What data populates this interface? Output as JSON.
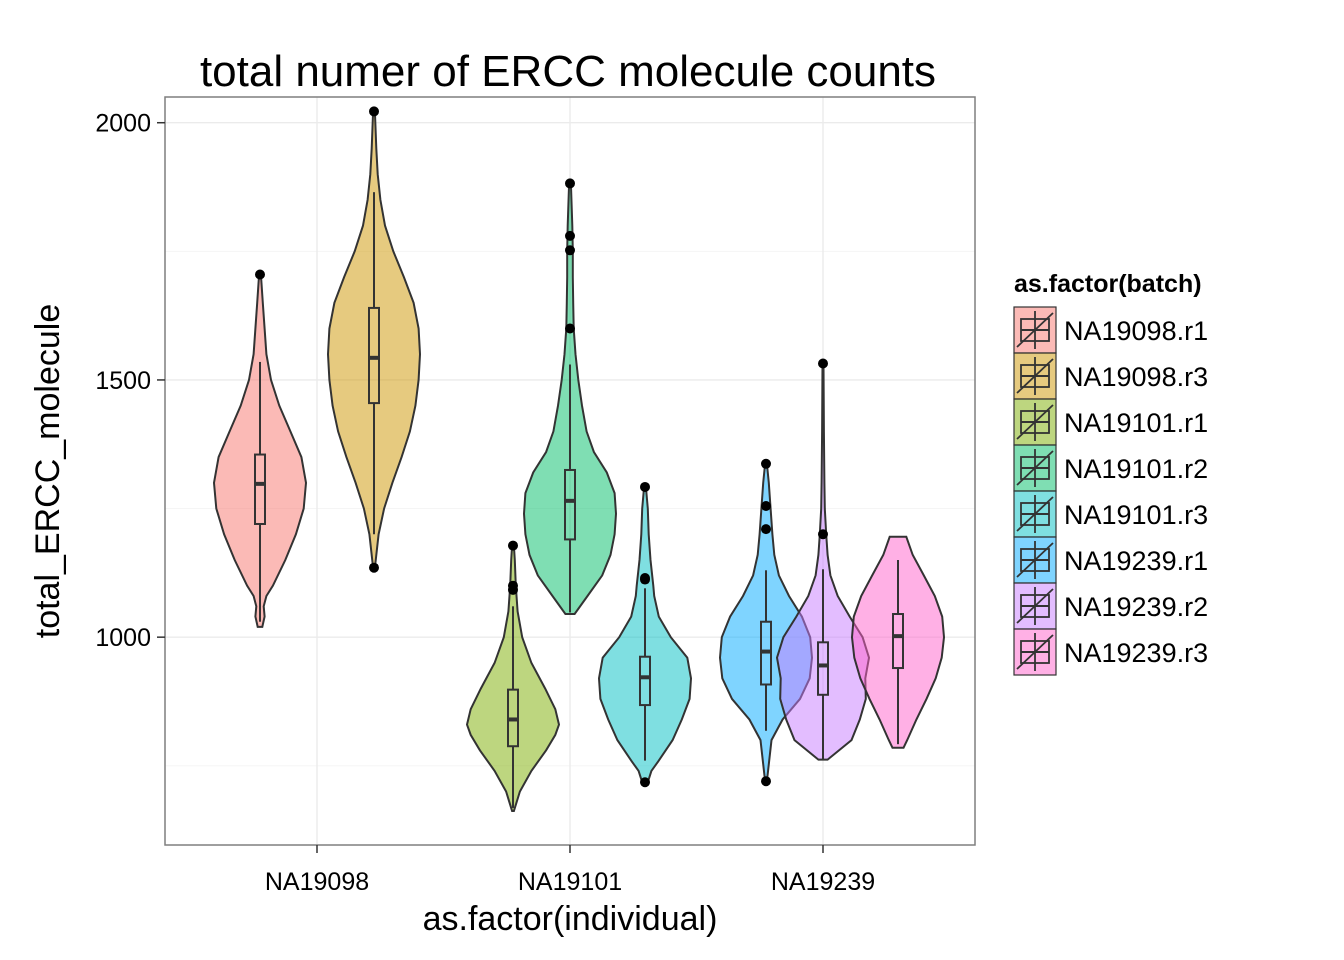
{
  "chart_data": {
    "type": "violin",
    "title": "total numer of ERCC molecule counts",
    "xlabel": "as.factor(individual)",
    "ylabel": "total_ERCC_molecule",
    "categories": [
      "NA19098",
      "NA19101",
      "NA19239"
    ],
    "y_ticks": [
      1000,
      1500,
      2000
    ],
    "y_tick_labels": [
      "1000",
      "1500",
      "2000"
    ],
    "ylim": [
      596,
      2050
    ],
    "grid": true,
    "legend": {
      "title": "as.factor(batch)",
      "position": "right",
      "entries": [
        "NA19098.r1",
        "NA19098.r3",
        "NA19101.r1",
        "NA19101.r2",
        "NA19101.r3",
        "NA19239.r1",
        "NA19239.r2",
        "NA19239.r3"
      ]
    },
    "series": [
      {
        "name": "NA19098.r1",
        "category": "NA19098",
        "slot": 0,
        "color": "#F8766D",
        "min": 1020,
        "max": 1705,
        "q1": 1220,
        "median": 1298,
        "q3": 1355,
        "whisker_low": 1030,
        "whisker_high": 1535,
        "outliers": [
          1705
        ],
        "density": [
          [
            1020,
            0.05
          ],
          [
            1040,
            0.1
          ],
          [
            1060,
            0.08
          ],
          [
            1080,
            0.14
          ],
          [
            1100,
            0.28
          ],
          [
            1150,
            0.55
          ],
          [
            1200,
            0.78
          ],
          [
            1250,
            0.95
          ],
          [
            1300,
            1.0
          ],
          [
            1350,
            0.9
          ],
          [
            1400,
            0.66
          ],
          [
            1450,
            0.42
          ],
          [
            1500,
            0.24
          ],
          [
            1550,
            0.14
          ],
          [
            1600,
            0.1
          ],
          [
            1650,
            0.06
          ],
          [
            1705,
            0.02
          ]
        ]
      },
      {
        "name": "NA19098.r3",
        "category": "NA19098",
        "slot": 1,
        "color": "#CD9600",
        "min": 1135,
        "max": 2022,
        "q1": 1455,
        "median": 1543,
        "q3": 1640,
        "whisker_low": 1200,
        "whisker_high": 1865,
        "outliers": [
          1135,
          2022
        ],
        "density": [
          [
            1135,
            0.02
          ],
          [
            1200,
            0.1
          ],
          [
            1250,
            0.22
          ],
          [
            1300,
            0.4
          ],
          [
            1350,
            0.6
          ],
          [
            1400,
            0.78
          ],
          [
            1450,
            0.9
          ],
          [
            1500,
            0.97
          ],
          [
            1550,
            1.0
          ],
          [
            1600,
            0.97
          ],
          [
            1650,
            0.86
          ],
          [
            1700,
            0.65
          ],
          [
            1750,
            0.42
          ],
          [
            1800,
            0.24
          ],
          [
            1850,
            0.14
          ],
          [
            1900,
            0.08
          ],
          [
            1950,
            0.05
          ],
          [
            2022,
            0.02
          ]
        ]
      },
      {
        "name": "NA19101.r1",
        "category": "NA19101",
        "slot": 0,
        "color": "#7CAE00",
        "min": 662,
        "max": 1178,
        "q1": 788,
        "median": 840,
        "q3": 898,
        "whisker_low": 668,
        "whisker_high": 1060,
        "outliers": [
          1092,
          1100,
          1178
        ],
        "density": [
          [
            662,
            0.02
          ],
          [
            700,
            0.15
          ],
          [
            740,
            0.4
          ],
          [
            780,
            0.72
          ],
          [
            810,
            0.92
          ],
          [
            830,
            1.0
          ],
          [
            860,
            0.92
          ],
          [
            900,
            0.7
          ],
          [
            950,
            0.4
          ],
          [
            1000,
            0.2
          ],
          [
            1050,
            0.1
          ],
          [
            1100,
            0.06
          ],
          [
            1150,
            0.04
          ],
          [
            1178,
            0.02
          ]
        ]
      },
      {
        "name": "NA19101.r2",
        "category": "NA19101",
        "slot": 1,
        "color": "#00BE67",
        "min": 1045,
        "max": 1882,
        "q1": 1190,
        "median": 1265,
        "q3": 1325,
        "whisker_low": 1048,
        "whisker_high": 1530,
        "outliers": [
          1600,
          1752,
          1780,
          1882
        ],
        "density": [
          [
            1045,
            0.1
          ],
          [
            1080,
            0.38
          ],
          [
            1120,
            0.7
          ],
          [
            1160,
            0.88
          ],
          [
            1200,
            0.97
          ],
          [
            1240,
            1.0
          ],
          [
            1280,
            0.97
          ],
          [
            1320,
            0.8
          ],
          [
            1360,
            0.52
          ],
          [
            1400,
            0.36
          ],
          [
            1450,
            0.26
          ],
          [
            1500,
            0.18
          ],
          [
            1550,
            0.12
          ],
          [
            1600,
            0.08
          ],
          [
            1650,
            0.07
          ],
          [
            1700,
            0.06
          ],
          [
            1750,
            0.06
          ],
          [
            1800,
            0.05
          ],
          [
            1882,
            0.02
          ]
        ]
      },
      {
        "name": "NA19101.r3",
        "category": "NA19101",
        "slot": 2,
        "color": "#00BFC4",
        "min": 718,
        "max": 1292,
        "q1": 868,
        "median": 922,
        "q3": 962,
        "whisker_low": 760,
        "whisker_high": 1095,
        "outliers": [
          718,
          1112,
          1115,
          1292
        ],
        "density": [
          [
            718,
            0.06
          ],
          [
            740,
            0.14
          ],
          [
            760,
            0.3
          ],
          [
            800,
            0.6
          ],
          [
            840,
            0.8
          ],
          [
            880,
            0.97
          ],
          [
            920,
            1.0
          ],
          [
            960,
            0.92
          ],
          [
            1000,
            0.56
          ],
          [
            1040,
            0.3
          ],
          [
            1080,
            0.2
          ],
          [
            1100,
            0.18
          ],
          [
            1150,
            0.12
          ],
          [
            1200,
            0.08
          ],
          [
            1250,
            0.06
          ],
          [
            1292,
            0.02
          ]
        ]
      },
      {
        "name": "NA19239.r1",
        "category": "NA19239",
        "slot": 0,
        "color": "#00A9FF",
        "min": 720,
        "max": 1337,
        "q1": 908,
        "median": 972,
        "q3": 1030,
        "whisker_low": 818,
        "whisker_high": 1130,
        "outliers": [
          720,
          1210,
          1255,
          1337
        ],
        "density": [
          [
            720,
            0.02
          ],
          [
            800,
            0.12
          ],
          [
            840,
            0.36
          ],
          [
            880,
            0.74
          ],
          [
            920,
            0.95
          ],
          [
            960,
            1.0
          ],
          [
            1000,
            0.96
          ],
          [
            1040,
            0.78
          ],
          [
            1080,
            0.5
          ],
          [
            1120,
            0.28
          ],
          [
            1160,
            0.18
          ],
          [
            1200,
            0.14
          ],
          [
            1250,
            0.1
          ],
          [
            1300,
            0.06
          ],
          [
            1337,
            0.02
          ]
        ]
      },
      {
        "name": "NA19239.r2",
        "category": "NA19239",
        "slot": 1,
        "color": "#C77CFF",
        "min": 762,
        "max": 1532,
        "q1": 888,
        "median": 945,
        "q3": 990,
        "whisker_low": 762,
        "whisker_high": 1132,
        "outliers": [
          1200,
          1532
        ],
        "density": [
          [
            762,
            0.1
          ],
          [
            800,
            0.62
          ],
          [
            840,
            0.8
          ],
          [
            880,
            0.93
          ],
          [
            920,
            0.92
          ],
          [
            960,
            1.0
          ],
          [
            1000,
            0.86
          ],
          [
            1040,
            0.58
          ],
          [
            1080,
            0.32
          ],
          [
            1120,
            0.16
          ],
          [
            1160,
            0.1
          ],
          [
            1200,
            0.07
          ],
          [
            1250,
            0.04
          ],
          [
            1300,
            0.03
          ],
          [
            1400,
            0.02
          ],
          [
            1532,
            0.01
          ]
        ]
      },
      {
        "name": "NA19239.r3",
        "category": "NA19239",
        "slot": 2,
        "color": "#FF61CC",
        "min": 785,
        "max": 1195,
        "q1": 940,
        "median": 1002,
        "q3": 1045,
        "whisker_low": 792,
        "whisker_high": 1150,
        "outliers": [],
        "density": [
          [
            785,
            0.12
          ],
          [
            800,
            0.2
          ],
          [
            840,
            0.4
          ],
          [
            880,
            0.62
          ],
          [
            920,
            0.82
          ],
          [
            960,
            0.95
          ],
          [
            1000,
            1.0
          ],
          [
            1040,
            0.96
          ],
          [
            1080,
            0.8
          ],
          [
            1120,
            0.56
          ],
          [
            1160,
            0.32
          ],
          [
            1195,
            0.18
          ]
        ]
      }
    ]
  }
}
